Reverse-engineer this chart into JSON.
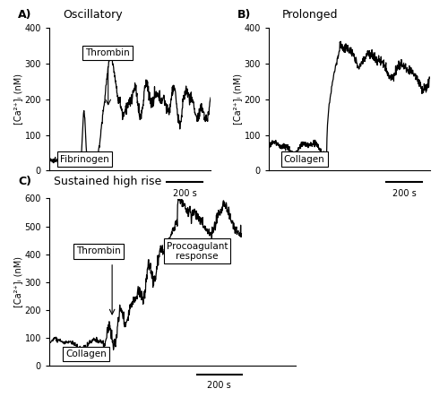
{
  "fig_width": 5.0,
  "fig_height": 4.43,
  "dpi": 100,
  "panels": {
    "A": {
      "title": "Oscillatory",
      "label": "A)",
      "ylabel": "[Ca²⁺]ᵢ (nM)",
      "ylim": [
        0,
        400
      ],
      "yticks": [
        0,
        100,
        200,
        300,
        400
      ]
    },
    "B": {
      "title": "Prolonged",
      "label": "B)",
      "ylabel": "[Ca²⁺]ᵢ (nM)",
      "ylim": [
        0,
        400
      ],
      "yticks": [
        0,
        100,
        200,
        300,
        400
      ]
    },
    "C": {
      "title": "Sustained high rise",
      "label": "C)",
      "ylabel": "[Ca²⁺]ᵢ (nM)",
      "ylim": [
        0,
        600
      ],
      "yticks": [
        0,
        100,
        200,
        300,
        400,
        500,
        600
      ]
    }
  }
}
